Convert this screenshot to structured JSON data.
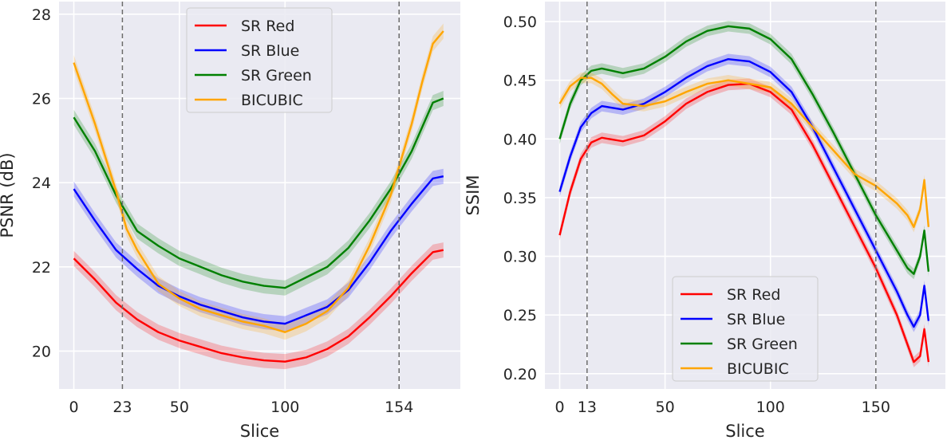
{
  "chart_data": [
    {
      "type": "line",
      "xlabel": "Slice",
      "ylabel": "PSNR (dB)",
      "xlim": [
        -7,
        183
      ],
      "ylim": [
        19.1,
        28.3
      ],
      "xticks": [
        0,
        23,
        50,
        100,
        154
      ],
      "yticks": [
        20,
        22,
        24,
        26,
        28
      ],
      "vlines": [
        23,
        154
      ],
      "legend_position": "upper center",
      "grid": true,
      "series": [
        {
          "name": "SR Red",
          "color": "#ff0000",
          "x": [
            0,
            10,
            20,
            30,
            40,
            50,
            60,
            70,
            80,
            90,
            100,
            110,
            120,
            130,
            140,
            150,
            160,
            170,
            175
          ],
          "y": [
            22.2,
            21.7,
            21.15,
            20.75,
            20.45,
            20.25,
            20.1,
            19.95,
            19.85,
            19.78,
            19.75,
            19.85,
            20.05,
            20.35,
            20.8,
            21.3,
            21.85,
            22.35,
            22.4
          ]
        },
        {
          "name": "SR Blue",
          "color": "#0000ff",
          "x": [
            0,
            10,
            20,
            30,
            40,
            50,
            60,
            70,
            80,
            90,
            100,
            110,
            120,
            130,
            140,
            150,
            160,
            170,
            175
          ],
          "y": [
            23.85,
            23.1,
            22.4,
            21.95,
            21.55,
            21.3,
            21.1,
            20.95,
            20.8,
            20.7,
            20.65,
            20.85,
            21.05,
            21.45,
            22.1,
            22.85,
            23.5,
            24.1,
            24.15
          ]
        },
        {
          "name": "SR Green",
          "color": "#008000",
          "x": [
            0,
            10,
            20,
            30,
            40,
            50,
            60,
            70,
            80,
            90,
            100,
            110,
            120,
            130,
            140,
            150,
            160,
            170,
            175
          ],
          "y": [
            25.55,
            24.75,
            23.7,
            22.85,
            22.5,
            22.2,
            22.0,
            21.8,
            21.65,
            21.55,
            21.5,
            21.75,
            22.0,
            22.45,
            23.1,
            23.85,
            24.75,
            25.9,
            26.0
          ]
        },
        {
          "name": "BICUBIC",
          "color": "#ffa500",
          "x": [
            0,
            10,
            20,
            25,
            30,
            40,
            50,
            60,
            70,
            80,
            90,
            100,
            110,
            120,
            130,
            140,
            150,
            160,
            165,
            170,
            175
          ],
          "y": [
            26.85,
            25.4,
            23.8,
            22.9,
            22.4,
            21.6,
            21.25,
            21.0,
            20.85,
            20.7,
            20.6,
            20.45,
            20.65,
            20.95,
            21.5,
            22.5,
            23.7,
            25.4,
            26.4,
            27.3,
            27.6
          ]
        }
      ]
    },
    {
      "type": "line",
      "xlabel": "Slice",
      "ylabel": "SSIM",
      "xlim": [
        -7,
        183
      ],
      "ylim": [
        0.187,
        0.517
      ],
      "xticks": [
        0,
        13,
        50,
        100,
        150
      ],
      "yticks": [
        0.2,
        0.25,
        0.3,
        0.35,
        0.4,
        0.45,
        0.5
      ],
      "ytick_labels": [
        "0.20",
        "0.25",
        "0.30",
        "0.35",
        "0.40",
        "0.45",
        "0.50"
      ],
      "vlines": [
        13,
        150
      ],
      "legend_position": "lower center",
      "grid": true,
      "series": [
        {
          "name": "SR Red",
          "color": "#ff0000",
          "x": [
            0,
            5,
            10,
            15,
            20,
            30,
            40,
            50,
            60,
            70,
            80,
            90,
            100,
            110,
            120,
            130,
            140,
            150,
            160,
            165,
            168,
            171,
            173,
            175
          ],
          "y": [
            0.318,
            0.355,
            0.383,
            0.397,
            0.401,
            0.398,
            0.403,
            0.415,
            0.43,
            0.44,
            0.446,
            0.447,
            0.44,
            0.425,
            0.395,
            0.36,
            0.325,
            0.29,
            0.25,
            0.225,
            0.21,
            0.215,
            0.238,
            0.21
          ]
        },
        {
          "name": "SR Blue",
          "color": "#0000ff",
          "x": [
            0,
            5,
            10,
            15,
            20,
            30,
            40,
            50,
            60,
            70,
            80,
            90,
            100,
            110,
            120,
            130,
            140,
            150,
            160,
            165,
            168,
            171,
            173,
            175
          ],
          "y": [
            0.355,
            0.385,
            0.41,
            0.422,
            0.428,
            0.425,
            0.43,
            0.44,
            0.452,
            0.462,
            0.468,
            0.466,
            0.457,
            0.44,
            0.41,
            0.375,
            0.34,
            0.305,
            0.27,
            0.25,
            0.24,
            0.25,
            0.275,
            0.245
          ]
        },
        {
          "name": "SR Green",
          "color": "#008000",
          "x": [
            0,
            5,
            10,
            15,
            20,
            30,
            40,
            50,
            60,
            70,
            80,
            90,
            100,
            110,
            120,
            130,
            140,
            150,
            160,
            165,
            168,
            171,
            173,
            175
          ],
          "y": [
            0.4,
            0.43,
            0.45,
            0.458,
            0.46,
            0.456,
            0.46,
            0.47,
            0.483,
            0.492,
            0.496,
            0.494,
            0.485,
            0.468,
            0.438,
            0.405,
            0.37,
            0.335,
            0.305,
            0.29,
            0.285,
            0.3,
            0.322,
            0.287
          ]
        },
        {
          "name": "BICUBIC",
          "color": "#ffa500",
          "x": [
            0,
            5,
            10,
            15,
            20,
            25,
            30,
            40,
            50,
            60,
            70,
            80,
            90,
            100,
            110,
            120,
            130,
            140,
            150,
            160,
            165,
            168,
            171,
            173,
            175
          ],
          "y": [
            0.43,
            0.445,
            0.452,
            0.452,
            0.447,
            0.438,
            0.43,
            0.428,
            0.432,
            0.44,
            0.447,
            0.45,
            0.447,
            0.444,
            0.43,
            0.41,
            0.39,
            0.37,
            0.36,
            0.345,
            0.335,
            0.325,
            0.34,
            0.365,
            0.325
          ]
        }
      ]
    }
  ]
}
